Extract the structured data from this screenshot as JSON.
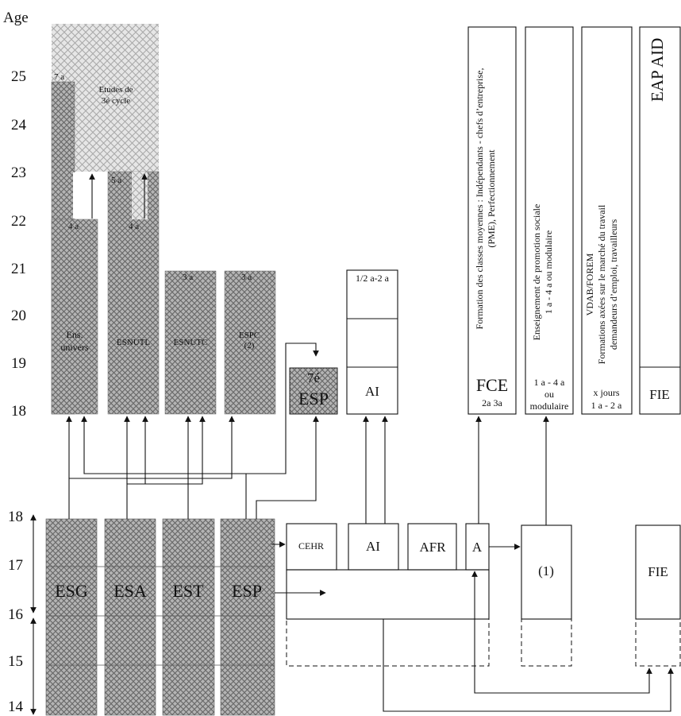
{
  "axis_top": {
    "title": "Age",
    "ticks": [
      "25",
      "24",
      "23",
      "22",
      "21",
      "20",
      "19",
      "18"
    ]
  },
  "axis_bottom": {
    "ticks": [
      "18",
      "17",
      "16",
      "15",
      "14"
    ]
  },
  "higher": {
    "etudes": "Etudes de",
    "cycle": "3é cycle",
    "ens_line1": "Ens.",
    "ens_line2": "univers",
    "esnutl": "ESNUTL",
    "esnutc": "ESNUTC",
    "espc_line1": "ESPC",
    "espc_line2": "(2)",
    "dur_7a": "7 a",
    "dur_5a": "5 a",
    "dur_4a_1": "4 a",
    "dur_4a_2": "4 a",
    "dur_3a_1": "3 a",
    "dur_3a_2": "3 a",
    "esp7_line1": "7é",
    "esp7_line2": "ESP"
  },
  "ai_box": {
    "dur": "1/2 a-2 a",
    "label": "AI"
  },
  "vertical_boxes": {
    "fce_text": [
      "Formation des classes moyennes : Indépendants - chefs d’entreprise,",
      "(PME), Perfectionnement"
    ],
    "fce_label": "FCE",
    "fce_dur": "2a 3a",
    "eps_text": [
      "Enseignement de promotion sociale",
      "1 a - 4 a ou modulaire"
    ],
    "eps_dur1": "1 a - 4 a",
    "eps_dur2": "ou",
    "eps_dur3": "modulaire",
    "vdab_text": [
      "VDAB/FOREM",
      "Formations axées sur le marché du travail",
      "demandeurs d’emploi, travailleurs"
    ],
    "vdab_dur1": "x jours",
    "vdab_dur2": "1 a - 2 a",
    "eap": "EAP AID",
    "fie": "FIE"
  },
  "secondary": {
    "esg": "ESG",
    "esa": "ESA",
    "est": "EST",
    "esp": "ESP"
  },
  "lower_boxes": {
    "cehr": "CEHR",
    "ai": "AI",
    "afr": "AFR",
    "a": "A",
    "one": "(1)",
    "fie": "FIE"
  }
}
